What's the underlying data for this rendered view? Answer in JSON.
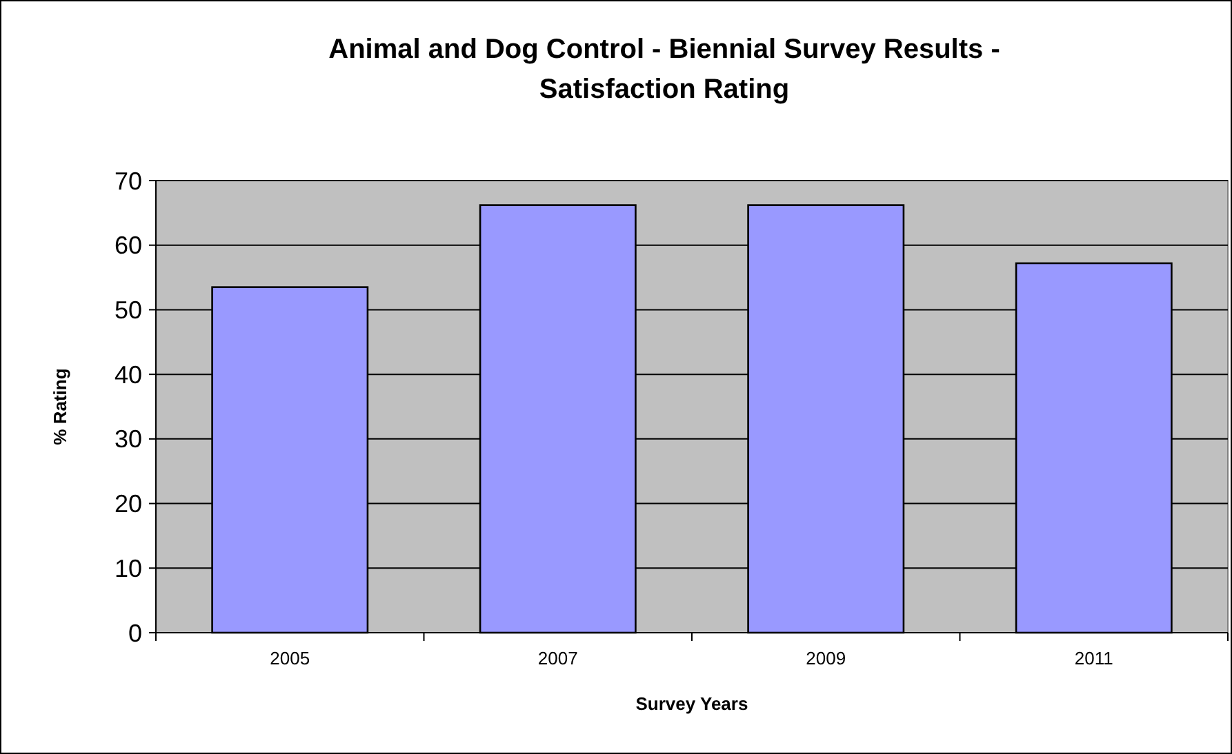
{
  "chart_data": {
    "type": "bar",
    "title": "Animal and Dog Control - Biennial Survey Results - Satisfaction Rating",
    "xlabel": "Survey Years",
    "ylabel": "% Rating",
    "categories": [
      "2005",
      "2007",
      "2009",
      "2011"
    ],
    "values": [
      53.5,
      66.2,
      66.2,
      57.2
    ],
    "color": "#9999ff",
    "ylim": [
      0,
      70
    ],
    "yticks": [
      0,
      10,
      20,
      30,
      40,
      50,
      60,
      70
    ],
    "grid": "y"
  }
}
